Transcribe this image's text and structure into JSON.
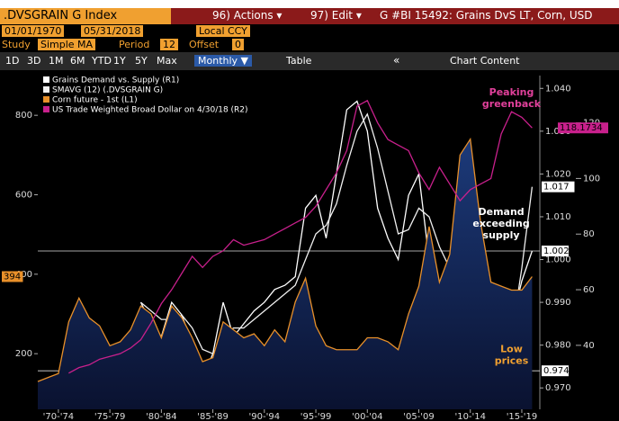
{
  "toolbar": {
    "ticker": ".DVSGRAIN G Index",
    "actions": "96) Actions ▾",
    "edit": "97) Edit ▾",
    "chart_title": "G #BI 15492: Grains DvS LT, Corn, USD",
    "start_date": "01/01/1970",
    "end_date": "05/31/2018",
    "currency": "Local CCY",
    "study_label": "Study",
    "study": "Simple MA",
    "period_label": "Period",
    "period": "12",
    "offset_label": "Offset",
    "offset": "0",
    "ranges": [
      "1D",
      "3D",
      "1M",
      "6M",
      "YTD",
      "1Y",
      "5Y",
      "Max"
    ],
    "frequency": "Monthly ▼",
    "table": "Table",
    "collapse": "«",
    "chart_content": "Chart Content"
  },
  "chart_data": {
    "type": "line",
    "x": [
      1970,
      1971,
      1972,
      1973,
      1974,
      1975,
      1976,
      1977,
      1978,
      1979,
      1980,
      1981,
      1982,
      1983,
      1984,
      1985,
      1986,
      1987,
      1988,
      1989,
      1990,
      1991,
      1992,
      1993,
      1994,
      1995,
      1996,
      1997,
      1998,
      1999,
      2000,
      2001,
      2002,
      2003,
      2004,
      2005,
      2006,
      2007,
      2008,
      2009,
      2010,
      2011,
      2012,
      2013,
      2014,
      2015,
      2016,
      2017,
      2018
    ],
    "xlim": [
      1970,
      2018.4
    ],
    "xticks": [
      {
        "value": 1972,
        "label": "'70-'74"
      },
      {
        "value": 1977,
        "label": "'75-'79"
      },
      {
        "value": 1982,
        "label": "'80-'84"
      },
      {
        "value": 1987,
        "label": "'85-'89"
      },
      {
        "value": 1992,
        "label": "'90-'94"
      },
      {
        "value": 1997,
        "label": "'95-'99"
      },
      {
        "value": 2002,
        "label": "'00-'04"
      },
      {
        "value": 2007,
        "label": "'05-'09"
      },
      {
        "value": 2012,
        "label": "'10-'14"
      },
      {
        "value": 2017,
        "label": "'15-'19"
      }
    ],
    "ylim": [
      60,
      900
    ],
    "yticks": [
      200,
      400,
      600,
      800
    ],
    "y2lim": [
      0.965,
      1.043
    ],
    "y2ticks": [
      {
        "value": 0.97,
        "label": "0.970"
      },
      {
        "value": 0.98,
        "label": "0.980"
      },
      {
        "value": 0.99,
        "label": "0.990"
      },
      {
        "value": 1.0,
        "label": "1.000"
      },
      {
        "value": 1.01,
        "label": "1.010"
      },
      {
        "value": 1.02,
        "label": "1.020"
      },
      {
        "value": 1.03,
        "label": "1.030"
      },
      {
        "value": 1.04,
        "label": "1.040"
      }
    ],
    "y3lim": [
      17,
      137
    ],
    "y3ticks": [
      40,
      60,
      80,
      100,
      120
    ],
    "reference_lines": [
      {
        "value": 1.002,
        "label": "1.002"
      },
      {
        "value": 0.974,
        "label": "0.974"
      }
    ],
    "series": [
      {
        "name": "Grains Demand vs. Supply (R1)",
        "color": "#ffffff",
        "axis": "y2",
        "values": [
          null,
          null,
          null,
          null,
          null,
          null,
          null,
          null,
          null,
          null,
          0.99,
          0.985,
          0.982,
          0.99,
          0.987,
          0.98,
          0.972,
          0.978,
          0.99,
          0.982,
          0.985,
          0.988,
          0.99,
          0.993,
          0.994,
          0.996,
          1.012,
          1.015,
          1.005,
          1.02,
          1.035,
          1.037,
          1.03,
          1.012,
          1.005,
          1.0,
          1.015,
          1.02,
          1.0,
          0.995,
          0.995,
          1.005,
          1.003,
          0.998,
          0.985,
          0.975,
          0.985,
          0.995,
          1.002
        ]
      },
      {
        "name": "SMAVG (12) (.DVSGRAIN G)",
        "color": "#f0f0f0",
        "axis": "y2",
        "values": [
          null,
          null,
          null,
          null,
          null,
          null,
          null,
          null,
          null,
          null,
          0.99,
          0.988,
          0.986,
          0.986,
          0.987,
          0.984,
          0.979,
          0.978,
          0.982,
          0.984,
          0.984,
          0.986,
          0.988,
          0.99,
          0.992,
          0.994,
          1.0,
          1.006,
          1.008,
          1.013,
          1.022,
          1.03,
          1.034,
          1.026,
          1.016,
          1.006,
          1.007,
          1.012,
          1.01,
          1.003,
          0.998,
          0.999,
          1.001,
          1.0,
          0.993,
          0.983,
          0.982,
          0.998,
          1.017
        ],
        "value_labels_last": "1.017"
      },
      {
        "name": "Corn future - 1st (L1)",
        "color": "#e8902a",
        "axis": "y",
        "area": true,
        "values": [
          130,
          140,
          150,
          280,
          340,
          290,
          270,
          220,
          230,
          260,
          320,
          300,
          240,
          320,
          290,
          240,
          180,
          190,
          280,
          260,
          240,
          250,
          220,
          260,
          230,
          330,
          390,
          270,
          220,
          210,
          210,
          210,
          240,
          240,
          230,
          210,
          300,
          370,
          520,
          380,
          450,
          700,
          740,
          530,
          380,
          370,
          360,
          360,
          394
        ],
        "value_labels_last": "394"
      },
      {
        "name": "US Trade Weighted Broad Dollar on 4/30/18 (R2)",
        "color": "#c8208c",
        "axis": "y3",
        "values": [
          null,
          null,
          null,
          30,
          32,
          33,
          35,
          36,
          37,
          39,
          42,
          48,
          55,
          60,
          66,
          72,
          68,
          72,
          74,
          78,
          76,
          77,
          78,
          80,
          82,
          84,
          86,
          90,
          96,
          102,
          110,
          126,
          128,
          120,
          114,
          112,
          110,
          102,
          96,
          104,
          98,
          92,
          96,
          98,
          100,
          116,
          124,
          122,
          118.1734
        ],
        "value_labels_last": "118.1734"
      }
    ],
    "annotations": [
      {
        "text": "Peaking greenback",
        "x": 2016,
        "y": 1.039
      },
      {
        "text": "Demand exceeding supply",
        "x": 2015,
        "y": 1.011
      },
      {
        "text": "Low prices",
        "x": 2016,
        "y": 0.979
      }
    ]
  }
}
